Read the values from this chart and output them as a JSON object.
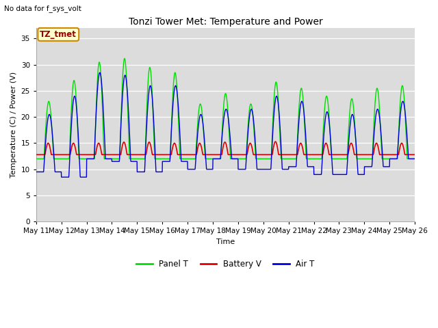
{
  "title": "Tonzi Tower Met: Temperature and Power",
  "top_left_text": "No data for f_sys_volt",
  "ylabel": "Temperature (C) / Power (V)",
  "xlabel": "Time",
  "legend_label": "TZ_tmet",
  "ylim": [
    0,
    37
  ],
  "yticks": [
    0,
    5,
    10,
    15,
    20,
    25,
    30,
    35
  ],
  "x_tick_days": [
    11,
    12,
    13,
    14,
    15,
    16,
    17,
    18,
    19,
    20,
    21,
    22,
    23,
    24,
    25,
    26
  ],
  "plot_bg_color": "#dcdcdc",
  "fig_bg_color": "#ffffff",
  "panel_T_color": "#00dd00",
  "battery_V_color": "#dd0000",
  "air_T_color": "#0000dd",
  "panel_T_label": "Panel T",
  "battery_V_label": "Battery V",
  "air_T_label": "Air T",
  "num_days": 15,
  "panel_peaks": [
    23,
    27,
    30.5,
    31.2,
    29.5,
    28.5,
    22.5,
    24.5,
    22.5,
    26.7,
    25.5,
    24,
    23.5,
    25.5,
    26
  ],
  "panel_troughs": [
    12,
    12,
    12,
    12,
    12,
    12,
    12,
    12,
    12,
    12,
    12,
    12,
    12,
    12,
    12
  ],
  "battery_peaks": [
    15,
    15,
    15,
    15.2,
    15.2,
    15,
    15,
    15.2,
    15,
    15.3,
    15,
    15,
    15,
    15,
    15
  ],
  "battery_troughs": [
    12.8,
    12.8,
    12.8,
    12.8,
    12.8,
    12.8,
    12.8,
    12.8,
    12.8,
    12.8,
    12.8,
    12.8,
    12.8,
    12.8,
    12.8
  ],
  "air_peaks": [
    20.5,
    24,
    28.5,
    28,
    26,
    26,
    20.5,
    21.5,
    21.5,
    24,
    23,
    21,
    20.5,
    21.5,
    23
  ],
  "air_troughs": [
    9.5,
    8.5,
    12,
    11.5,
    9.5,
    11.5,
    10,
    12,
    10,
    10,
    10.5,
    9,
    9,
    10.5,
    12
  ]
}
